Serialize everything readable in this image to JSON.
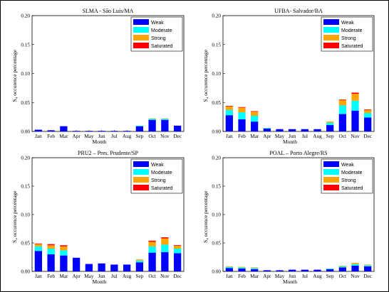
{
  "chart_data": [
    {
      "type": "bar",
      "stacked": true,
      "title": "SLMA  - São Luís/MA",
      "xlabel": "Month",
      "ylabel": "S₄ occurence percentage",
      "categories": [
        "Jan",
        "Feb",
        "Mar",
        "Apr",
        "May",
        "Jun",
        "Jul",
        "Aug",
        "Sep",
        "Oct",
        "Nov",
        "Dec"
      ],
      "ylim": [
        0,
        0.2
      ],
      "yticks": [
        "0.00",
        "0.05",
        "0.10",
        "0.15",
        "0.20"
      ],
      "legend_position": "top-right",
      "series": [
        {
          "name": "Weak",
          "color": "#0000ff",
          "values": [
            0.003,
            0.002,
            0.009,
            0.001,
            0.001,
            0.001,
            0.001,
            0.001,
            0.009,
            0.02,
            0.02,
            0.01
          ]
        },
        {
          "name": "Moderate",
          "color": "#00ffff",
          "values": [
            0,
            0,
            0,
            0,
            0,
            0,
            0,
            0,
            0.001,
            0.002,
            0.002,
            0
          ]
        },
        {
          "name": "Strong",
          "color": "#ffa500",
          "values": [
            0,
            0,
            0,
            0,
            0,
            0,
            0,
            0,
            0,
            0.0005,
            0.0005,
            0
          ]
        },
        {
          "name": "Saturated",
          "color": "#ff0000",
          "values": [
            0,
            0,
            0,
            0,
            0,
            0,
            0,
            0,
            0,
            0,
            0,
            0
          ]
        }
      ]
    },
    {
      "type": "bar",
      "stacked": true,
      "title": "UFBA- Salvador/BA",
      "xlabel": "Month",
      "ylabel": "S₄ occurence percentage",
      "categories": [
        "Jan",
        "Feb",
        "Mar",
        "Apr",
        "May",
        "Jun",
        "Jul",
        "Aug",
        "Sep",
        "Oct",
        "Nov",
        "Dec"
      ],
      "ylim": [
        0,
        0.2
      ],
      "yticks": [
        "0.00",
        "0.05",
        "0.10",
        "0.15",
        "0.20"
      ],
      "legend_position": "top-right",
      "series": [
        {
          "name": "Weak",
          "color": "#0000ff",
          "values": [
            0.028,
            0.021,
            0.017,
            0.005,
            0.004,
            0.004,
            0.004,
            0.004,
            0.011,
            0.03,
            0.036,
            0.024
          ]
        },
        {
          "name": "Moderate",
          "color": "#00ffff",
          "values": [
            0.009,
            0.012,
            0.01,
            0.001,
            0,
            0,
            0,
            0,
            0.004,
            0.015,
            0.017,
            0.008
          ]
        },
        {
          "name": "Strong",
          "color": "#ffa500",
          "values": [
            0.006,
            0.008,
            0.007,
            0,
            0,
            0,
            0,
            0,
            0.002,
            0.009,
            0.012,
            0.005
          ]
        },
        {
          "name": "Saturated",
          "color": "#ff0000",
          "values": [
            0.001,
            0.001,
            0.001,
            0,
            0,
            0,
            0,
            0,
            0,
            0.001,
            0.002,
            0.001
          ]
        }
      ]
    },
    {
      "type": "bar",
      "stacked": true,
      "title": "PRU2 – Pres. Prudente/SP",
      "xlabel": "Month",
      "ylabel": "S₄ occurence percentage",
      "categories": [
        "Jan",
        "Feb",
        "Mar",
        "Apr",
        "May",
        "Jun",
        "Jul",
        "Aug",
        "Sep",
        "Oct",
        "Nov",
        "Dec"
      ],
      "ylim": [
        0,
        0.2
      ],
      "yticks": [
        "0.00",
        "0.05",
        "0.10",
        "0.15",
        "0.20"
      ],
      "legend_position": "top-right",
      "series": [
        {
          "name": "Weak",
          "color": "#0000ff",
          "values": [
            0.036,
            0.03,
            0.028,
            0.024,
            0.013,
            0.014,
            0.012,
            0.012,
            0.016,
            0.033,
            0.034,
            0.032
          ]
        },
        {
          "name": "Moderate",
          "color": "#00ffff",
          "values": [
            0.008,
            0.01,
            0.009,
            0,
            0,
            0,
            0,
            0,
            0.003,
            0.011,
            0.013,
            0.008
          ]
        },
        {
          "name": "Strong",
          "color": "#ffa500",
          "values": [
            0.004,
            0.006,
            0.007,
            0,
            0,
            0,
            0,
            0,
            0.002,
            0.008,
            0.011,
            0.005
          ]
        },
        {
          "name": "Saturated",
          "color": "#ff0000",
          "values": [
            0.001,
            0.002,
            0.002,
            0,
            0,
            0,
            0,
            0,
            0,
            0.002,
            0.002,
            0.001
          ]
        }
      ]
    },
    {
      "type": "bar",
      "stacked": true,
      "title": "POAL – Porto Alegre/RS",
      "xlabel": "Month",
      "ylabel": "S₄ occurence percentage",
      "categories": [
        "Jan",
        "Feb",
        "Mar",
        "Apr",
        "May",
        "Jun",
        "Jul",
        "Aug",
        "Sep",
        "Oct",
        "Nov",
        "Dec"
      ],
      "ylim": [
        0,
        0.2
      ],
      "yticks": [
        "0.00",
        "0.05",
        "0.10",
        "0.15",
        "0.20"
      ],
      "legend_position": "top-right",
      "series": [
        {
          "name": "Weak",
          "color": "#0000ff",
          "values": [
            0.006,
            0.005,
            0.004,
            0.002,
            0.002,
            0.003,
            0.003,
            0.003,
            0.004,
            0.007,
            0.01,
            0.009
          ]
        },
        {
          "name": "Moderate",
          "color": "#00ffff",
          "values": [
            0.002,
            0.002,
            0.002,
            0,
            0,
            0,
            0,
            0,
            0.001,
            0.002,
            0.003,
            0.002
          ]
        },
        {
          "name": "Strong",
          "color": "#ffa500",
          "values": [
            0.001,
            0.001,
            0.001,
            0,
            0,
            0,
            0,
            0,
            0,
            0.001,
            0.002,
            0.001
          ]
        },
        {
          "name": "Saturated",
          "color": "#ff0000",
          "values": [
            0,
            0,
            0,
            0,
            0,
            0,
            0,
            0,
            0,
            0,
            0,
            0
          ]
        }
      ]
    }
  ]
}
